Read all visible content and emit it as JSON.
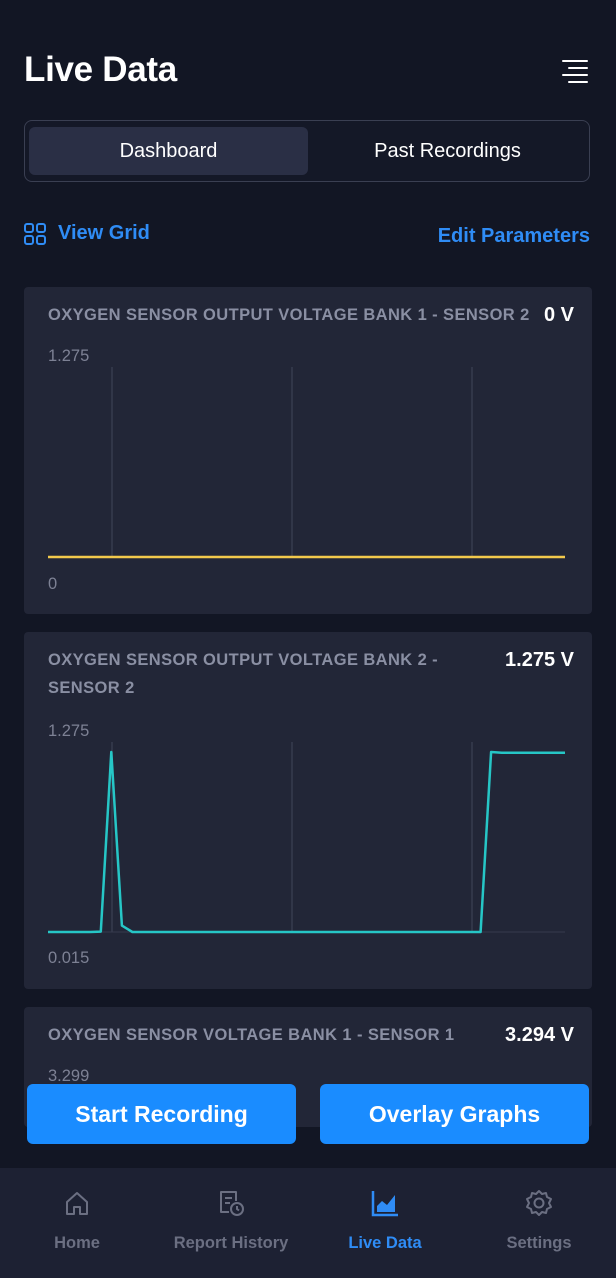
{
  "header": {
    "title": "Live Data",
    "menu_icon": "menu-lines-icon"
  },
  "segmented": {
    "tabs": [
      {
        "label": "Dashboard",
        "active": true
      },
      {
        "label": "Past Recordings",
        "active": false
      }
    ]
  },
  "actions": {
    "view_grid_label": "View Grid",
    "view_grid_icon": "grid-icon",
    "edit_parameters_label": "Edit Parameters"
  },
  "cards": [
    {
      "title": "OXYGEN SENSOR OUTPUT VOLTAGE BANK 1 - SENSOR 2",
      "value": "0 V",
      "y_max": "1.275",
      "y_min": "0",
      "line_color": "#f2c94c"
    },
    {
      "title": "OXYGEN SENSOR OUTPUT VOLTAGE BANK 2 - SENSOR 2",
      "value": "1.275 V",
      "y_max": "1.275",
      "y_min": "0.015",
      "line_color": "#26c6c6"
    },
    {
      "title": "OXYGEN SENSOR VOLTAGE BANK 1 - SENSOR 1",
      "value": "3.294 V",
      "y_max": "3.299"
    }
  ],
  "chart_data": [
    {
      "type": "line",
      "title": "OXYGEN SENSOR OUTPUT VOLTAGE BANK 1 - SENSOR 2",
      "ylim": [
        0,
        1.275
      ],
      "grid": true,
      "series": [
        {
          "values": [
            0,
            0,
            0,
            0,
            0,
            0,
            0,
            0,
            0,
            0,
            0,
            0,
            0,
            0,
            0,
            0,
            0,
            0,
            0,
            0,
            0,
            0,
            0,
            0,
            0,
            0,
            0,
            0,
            0,
            0
          ]
        }
      ]
    },
    {
      "type": "line",
      "title": "OXYGEN SENSOR OUTPUT VOLTAGE BANK 2 - SENSOR 2",
      "ylim": [
        0.015,
        1.275
      ],
      "grid": true,
      "series": [
        {
          "values": [
            0.015,
            0.015,
            0.015,
            0.015,
            0.015,
            0.018,
            1.275,
            0.06,
            0.015,
            0.015,
            0.015,
            0.015,
            0.015,
            0.015,
            0.015,
            0.015,
            0.015,
            0.015,
            0.015,
            0.015,
            0.015,
            0.015,
            0.015,
            0.015,
            0.015,
            0.015,
            0.015,
            0.015,
            0.015,
            0.015,
            0.015,
            0.015,
            0.015,
            0.015,
            0.015,
            0.015,
            0.015,
            0.015,
            0.015,
            0.015,
            0.015,
            0.015,
            1.275,
            1.27,
            1.27,
            1.27,
            1.27,
            1.27,
            1.27,
            1.27
          ]
        }
      ]
    }
  ],
  "bottom_buttons": {
    "start_recording": "Start Recording",
    "overlay_graphs": "Overlay Graphs"
  },
  "nav": [
    {
      "label": "Home",
      "icon": "home-icon",
      "active": false
    },
    {
      "label": "Report History",
      "icon": "report-history-icon",
      "active": false
    },
    {
      "label": "Live Data",
      "icon": "chart-icon",
      "active": true
    },
    {
      "label": "Settings",
      "icon": "gear-icon",
      "active": false
    }
  ],
  "colors": {
    "accent": "#2f8cf5",
    "background": "#121624",
    "card": "#222637"
  }
}
